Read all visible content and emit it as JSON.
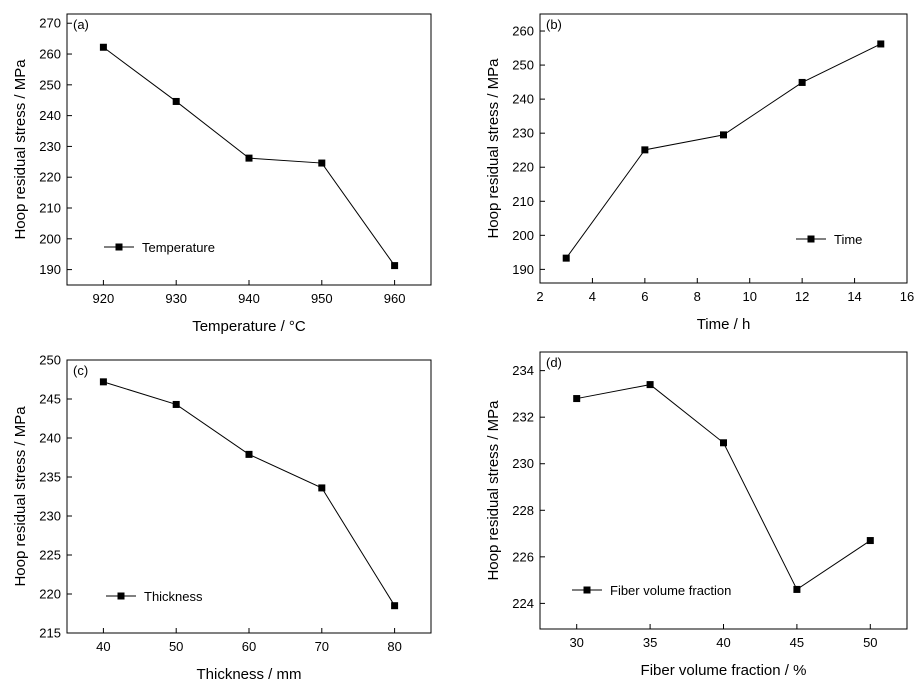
{
  "chart_data": [
    {
      "type": "line",
      "panel_label": "(a)",
      "xlabel": "Temperature / °C",
      "ylabel": "Hoop residual stress / MPa",
      "x": [
        920,
        930,
        940,
        950,
        960
      ],
      "series": [
        {
          "name": "Temperature",
          "values": [
            262.2,
            244.6,
            226.2,
            224.6,
            191.3
          ]
        }
      ],
      "xlim": [
        915,
        965
      ],
      "ylim": [
        185,
        273
      ],
      "xticks": [
        920,
        930,
        940,
        950,
        960
      ],
      "yticks": [
        190,
        200,
        210,
        220,
        230,
        240,
        250,
        260,
        270
      ],
      "legend": "lower-left",
      "grid": false,
      "color": "#000000"
    },
    {
      "type": "line",
      "panel_label": "(b)",
      "xlabel": "Time / h",
      "ylabel": "Hoop residual stress / MPa",
      "x": [
        3,
        6,
        9,
        12,
        15
      ],
      "series": [
        {
          "name": "Time",
          "values": [
            193.3,
            225.1,
            229.5,
            244.9,
            256.2
          ]
        }
      ],
      "xlim": [
        2,
        16
      ],
      "ylim": [
        186,
        265
      ],
      "xticks": [
        2,
        4,
        6,
        8,
        10,
        12,
        14,
        16
      ],
      "yticks": [
        190,
        200,
        210,
        220,
        230,
        240,
        250,
        260
      ],
      "legend": "lower-right",
      "grid": false,
      "color": "#000000"
    },
    {
      "type": "line",
      "panel_label": "(c)",
      "xlabel": "Thickness / mm",
      "ylabel": "Hoop residual stress / MPa",
      "x": [
        40,
        50,
        60,
        70,
        80
      ],
      "series": [
        {
          "name": "Thickness",
          "values": [
            247.2,
            244.3,
            237.9,
            233.6,
            218.5
          ]
        }
      ],
      "xlim": [
        35,
        85
      ],
      "ylim": [
        215,
        250
      ],
      "xticks": [
        40,
        50,
        60,
        70,
        80
      ],
      "yticks": [
        215,
        220,
        225,
        230,
        235,
        240,
        245,
        250
      ],
      "legend": "lower-left",
      "grid": false,
      "color": "#000000"
    },
    {
      "type": "line",
      "panel_label": "(d)",
      "xlabel": "Fiber volume fraction / %",
      "ylabel": "Hoop residual stress / MPa",
      "x": [
        30,
        35,
        40,
        45,
        50
      ],
      "series": [
        {
          "name": "Fiber volume fraction",
          "values": [
            232.8,
            233.4,
            230.9,
            224.6,
            226.7
          ]
        }
      ],
      "xlim": [
        27.5,
        52.5
      ],
      "ylim": [
        222.9,
        234.8
      ],
      "xticks": [
        30,
        35,
        40,
        45,
        50
      ],
      "yticks": [
        224,
        226,
        228,
        230,
        232,
        234
      ],
      "legend": "lower-left",
      "grid": false,
      "color": "#000000"
    }
  ]
}
